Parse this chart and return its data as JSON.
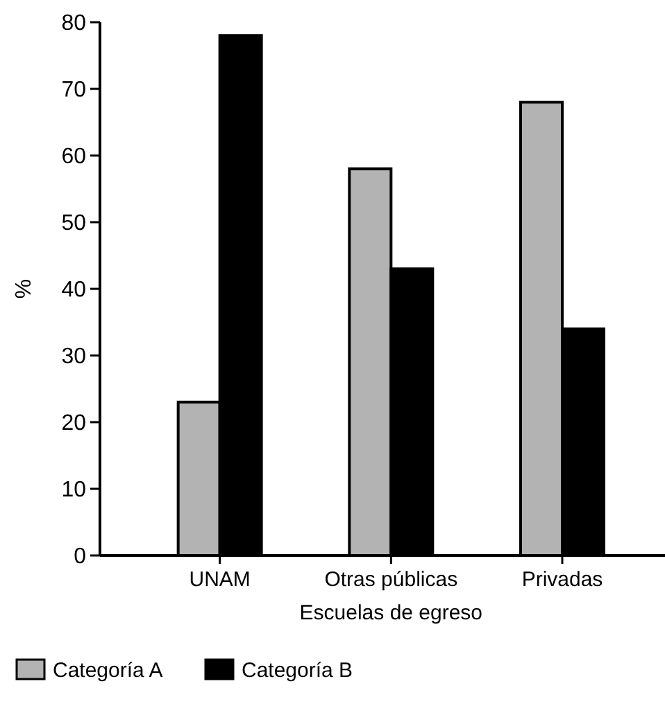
{
  "chart_data": {
    "type": "bar",
    "xlabel": "Escuelas de egreso",
    "ylabel": "%",
    "categories": [
      "UNAM",
      "Otras públicas",
      "Privadas"
    ],
    "series": [
      {
        "name": "Categoría A",
        "color": "#b3b3b3",
        "values": [
          23,
          58,
          68
        ]
      },
      {
        "name": "Categoría B",
        "color": "#000000",
        "values": [
          78,
          43,
          34
        ]
      }
    ],
    "ylim": [
      0,
      80
    ],
    "yticks": [
      0,
      10,
      20,
      30,
      40,
      50,
      60,
      70,
      80
    ],
    "grid": false,
    "legend": "bottom"
  }
}
